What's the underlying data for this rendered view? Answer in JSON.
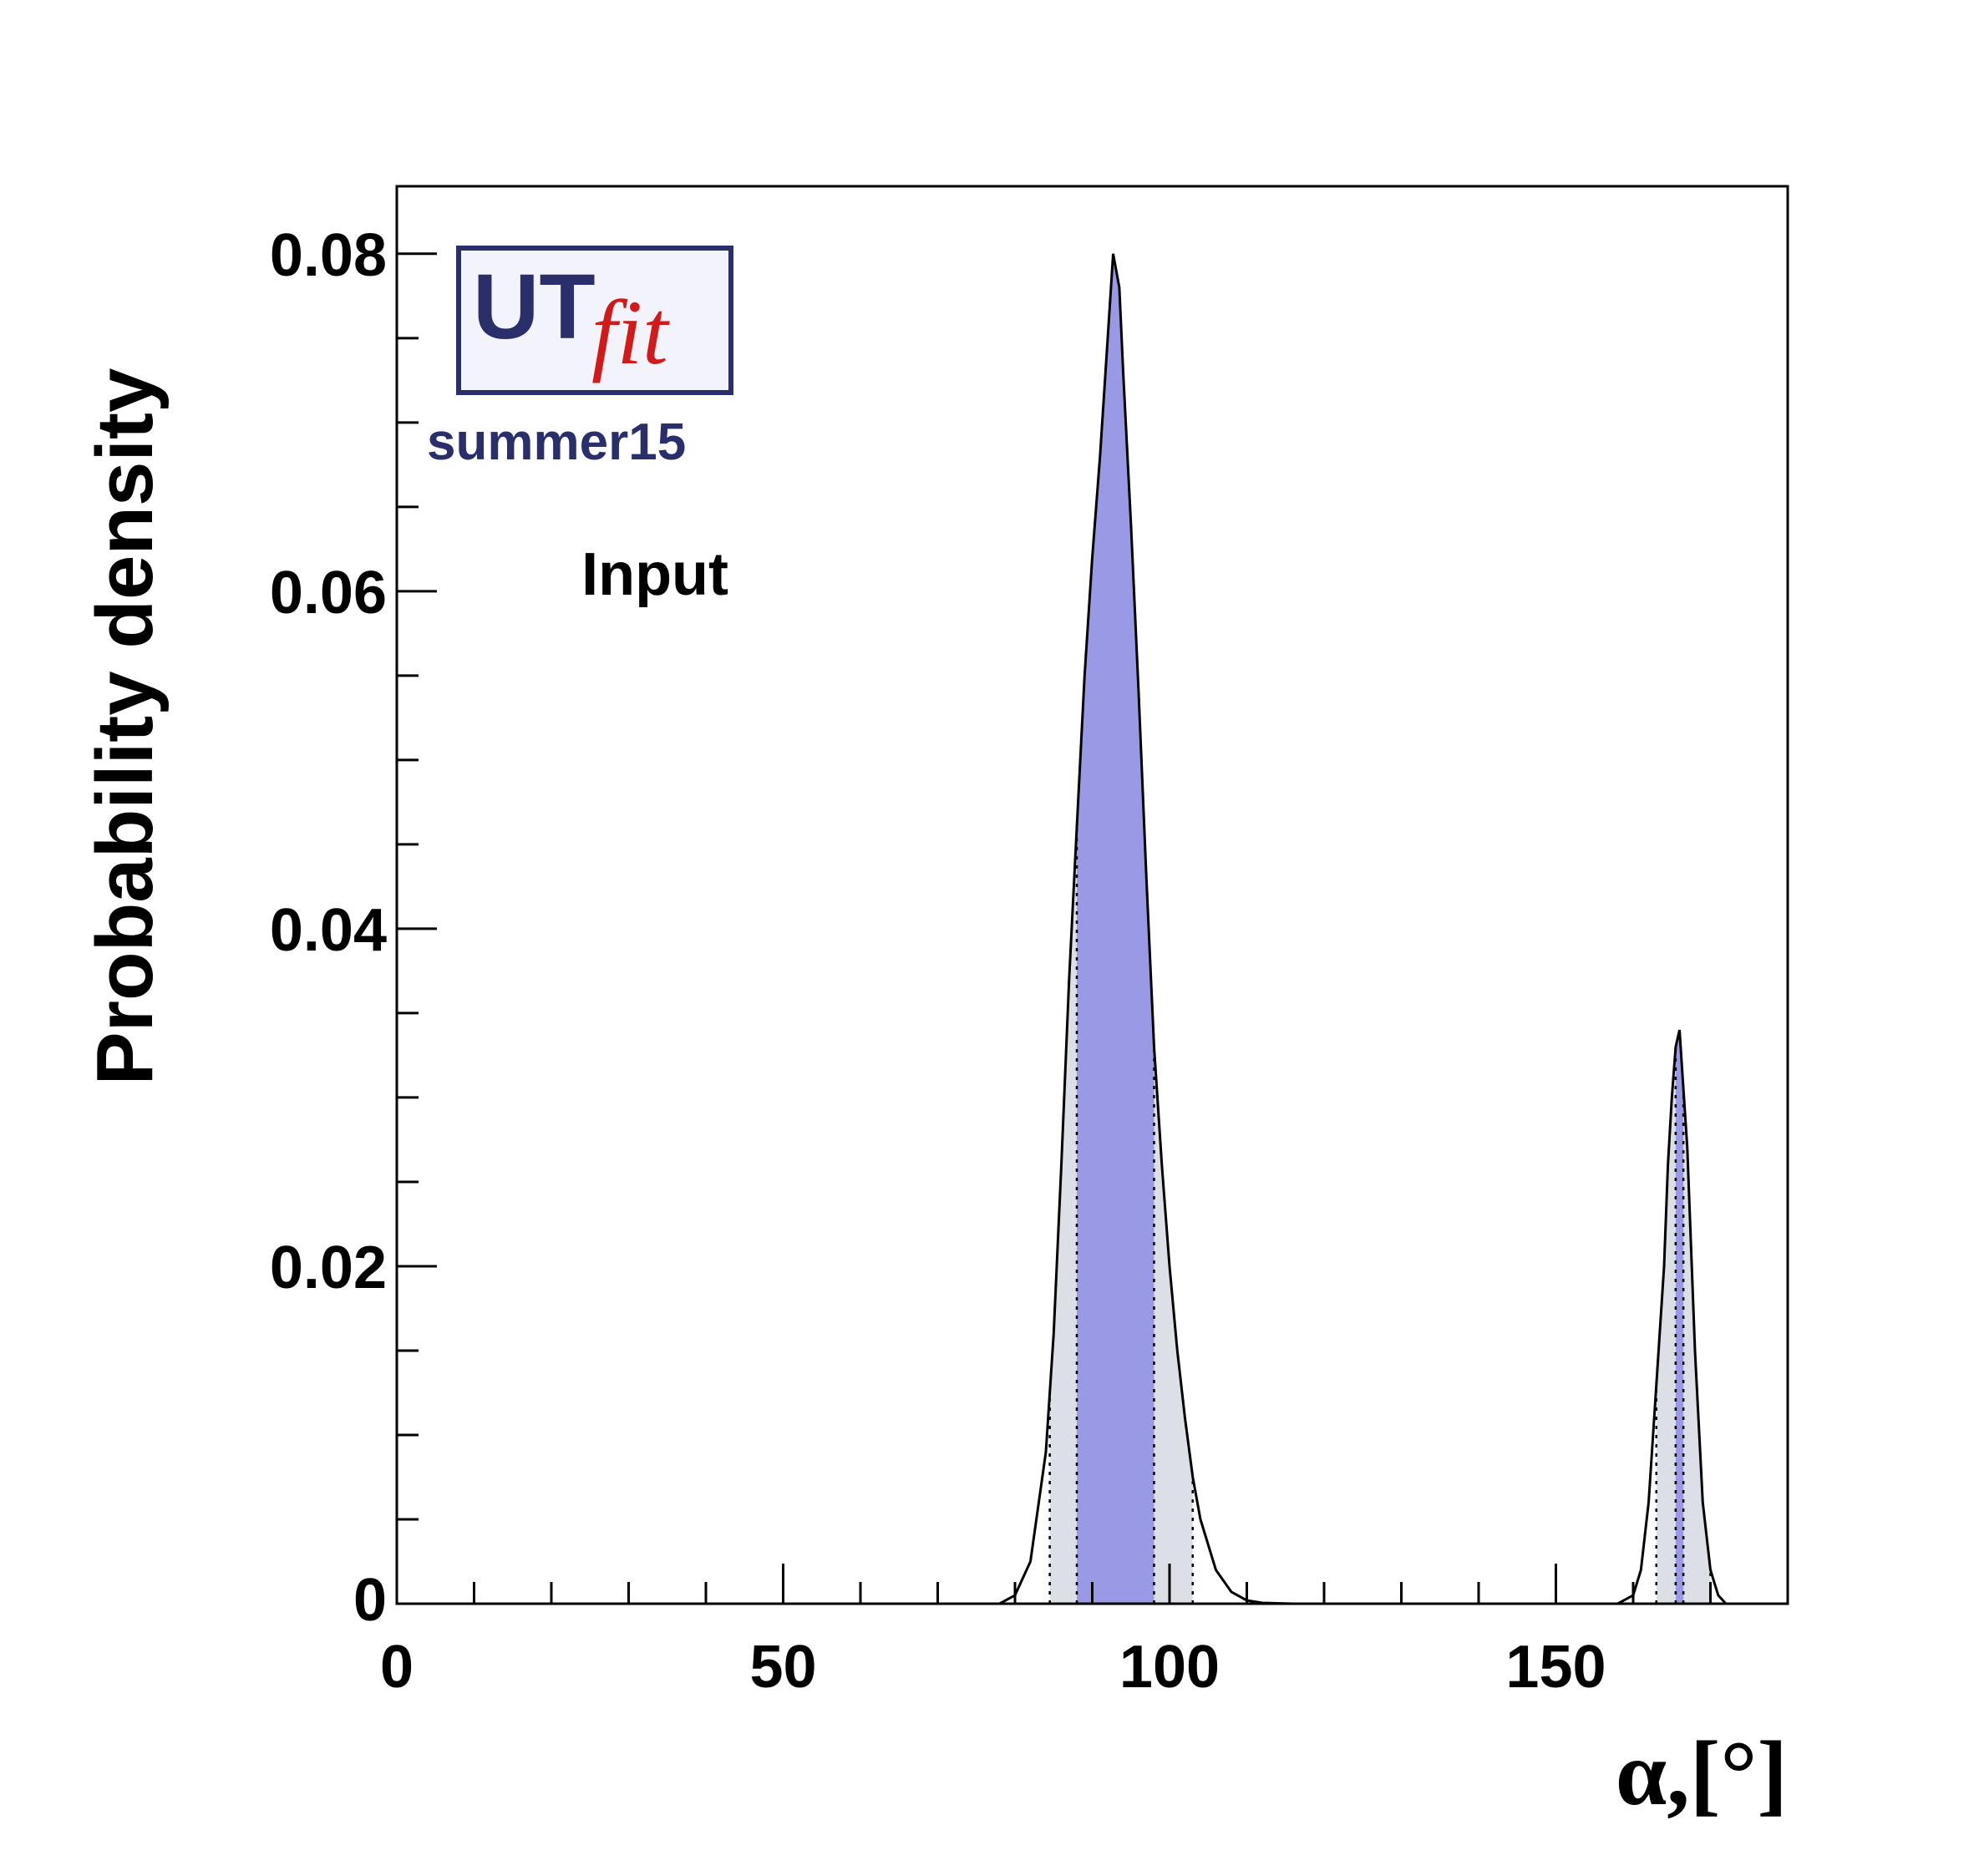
{
  "chart_data": {
    "type": "area",
    "xlabel": "α,[°]",
    "ylabel": "Probability density",
    "xlim": [
      0,
      180
    ],
    "ylim": [
      0,
      0.084
    ],
    "x_ticks": [
      {
        "value": 0,
        "label": "0"
      },
      {
        "value": 50,
        "label": "50"
      },
      {
        "value": 100,
        "label": "100"
      },
      {
        "value": 150,
        "label": "150"
      }
    ],
    "y_ticks": [
      {
        "value": 0,
        "label": "0"
      },
      {
        "value": 0.02,
        "label": "0.02"
      },
      {
        "value": 0.04,
        "label": "0.04"
      },
      {
        "value": 0.06,
        "label": "0.06"
      },
      {
        "value": 0.08,
        "label": "0.08"
      }
    ],
    "series": [
      {
        "x": [
          78,
          80,
          82,
          84,
          85,
          86,
          87,
          88,
          89,
          90,
          91,
          92,
          92.7,
          93.5,
          94,
          95,
          96,
          97,
          98,
          99,
          100,
          101,
          102,
          103,
          104,
          106,
          108,
          110,
          112,
          116,
          158,
          160,
          161,
          162,
          163,
          164,
          164.5,
          165,
          165.5,
          166,
          167,
          168,
          169,
          170,
          171,
          172
        ],
        "y": [
          0,
          0.0005,
          0.0025,
          0.009,
          0.016,
          0.026,
          0.037,
          0.046,
          0.055,
          0.062,
          0.068,
          0.075,
          0.08,
          0.078,
          0.073,
          0.064,
          0.054,
          0.043,
          0.033,
          0.026,
          0.02,
          0.015,
          0.011,
          0.0075,
          0.005,
          0.002,
          0.0007,
          0.0002,
          5e-05,
          0,
          0,
          0.0005,
          0.002,
          0.006,
          0.013,
          0.02,
          0.026,
          0.03,
          0.033,
          0.034,
          0.027,
          0.015,
          0.006,
          0.002,
          0.0005,
          0
        ]
      }
    ],
    "regions_68": [
      [
        88,
        98
      ],
      [
        165.5,
        166.5
      ]
    ],
    "regions_95": [
      [
        84.5,
        103
      ],
      [
        163,
        170
      ]
    ],
    "colors": {
      "region_68": "#9999e6",
      "region_95": "#dcdfe6",
      "curve": "#000000",
      "frame": "#000000"
    },
    "annotations": [
      "Input"
    ],
    "logo": {
      "text_ut": "UT",
      "text_fit": "fit",
      "subtitle": "summer15"
    }
  }
}
